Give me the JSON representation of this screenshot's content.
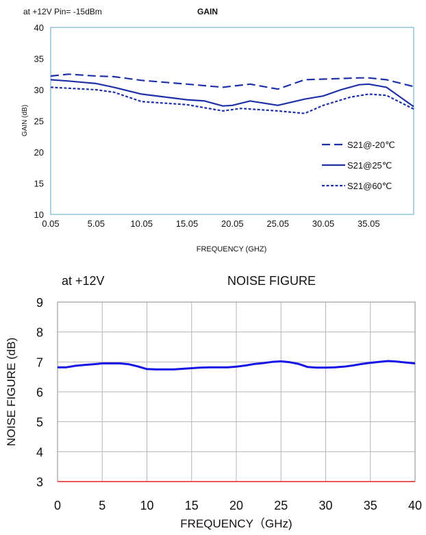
{
  "chart_data": [
    {
      "type": "line",
      "annotation": "at +12V Pin= -15dBm",
      "title": "GAIN",
      "xlabel": "FREQUENCY (GHZ)",
      "ylabel": "GAIN (dB)",
      "xlim": [
        0.05,
        40
      ],
      "ylim": [
        10,
        40
      ],
      "x_tick_labels": [
        "0.05",
        "5.05",
        "10.05",
        "15.05",
        "20.05",
        "25.05",
        "30.05",
        "35.05"
      ],
      "x_ticks": [
        0.05,
        5.05,
        10.05,
        15.05,
        20.05,
        25.05,
        30.05,
        35.05
      ],
      "y_ticks": [
        10,
        15,
        20,
        25,
        30,
        35,
        40
      ],
      "grid": false,
      "legend_position": "bottom-right",
      "series": [
        {
          "name": "S21@-20℃",
          "style": "dashed",
          "color": "#1f2fa8",
          "x": [
            0.05,
            2,
            5.05,
            7,
            10.05,
            15.05,
            19,
            22,
            25.05,
            28,
            30.05,
            34,
            35.05,
            37,
            40
          ],
          "y": [
            32.2,
            32.5,
            32.2,
            32.1,
            31.5,
            30.9,
            30.4,
            30.9,
            30.1,
            31.6,
            31.7,
            31.9,
            31.9,
            31.6,
            30.5
          ]
        },
        {
          "name": "S21@25℃",
          "style": "solid",
          "color": "#1f2fa8",
          "x": [
            0.05,
            2,
            5.05,
            7,
            10.05,
            15.05,
            17,
            19,
            20.05,
            22,
            25.05,
            28,
            30.05,
            32,
            34,
            35.05,
            37,
            40
          ],
          "y": [
            31.6,
            31.4,
            31.0,
            30.4,
            29.3,
            28.4,
            28.2,
            27.4,
            27.5,
            28.2,
            27.5,
            28.5,
            29.0,
            30.0,
            30.8,
            30.9,
            30.4,
            27.3
          ]
        },
        {
          "name": "S21@60℃",
          "style": "dotted",
          "color": "#1f2fa8",
          "x": [
            0.05,
            5.05,
            7,
            10.05,
            15.05,
            19,
            21,
            25.05,
            28,
            30.05,
            33,
            35.05,
            37,
            40
          ],
          "y": [
            30.4,
            30.0,
            29.6,
            28.1,
            27.6,
            26.6,
            27.0,
            26.6,
            26.2,
            27.5,
            28.8,
            29.3,
            29.1,
            26.9
          ]
        }
      ]
    },
    {
      "type": "line",
      "annotation": "at +12V",
      "title": "NOISE FIGURE",
      "xlabel": "FREQUENCY（GHz)",
      "ylabel": "NOISE FIGURE (dB)",
      "xlim": [
        0,
        40
      ],
      "ylim": [
        3,
        9
      ],
      "x_ticks": [
        0,
        5,
        10,
        15,
        20,
        25,
        30,
        35,
        40
      ],
      "y_ticks": [
        3,
        4,
        5,
        6,
        7,
        8,
        9
      ],
      "grid": true,
      "series": [
        {
          "color": "#1414e6",
          "x": [
            0,
            1,
            2,
            3,
            4,
            5,
            6,
            7,
            8,
            9,
            10,
            11,
            12,
            13,
            14,
            15,
            16,
            17,
            18,
            19,
            20,
            21,
            22,
            23,
            24,
            25,
            26,
            27,
            28,
            29,
            30,
            31,
            32,
            33,
            34,
            35,
            36,
            37,
            38,
            39,
            40
          ],
          "y": [
            6.82,
            6.82,
            6.87,
            6.9,
            6.92,
            6.95,
            6.95,
            6.95,
            6.92,
            6.85,
            6.76,
            6.75,
            6.75,
            6.75,
            6.77,
            6.79,
            6.81,
            6.82,
            6.82,
            6.82,
            6.84,
            6.88,
            6.93,
            6.96,
            7.0,
            7.02,
            6.99,
            6.93,
            6.83,
            6.81,
            6.81,
            6.82,
            6.84,
            6.88,
            6.93,
            6.97,
            7.0,
            7.03,
            7.01,
            6.98,
            6.95
          ]
        }
      ]
    }
  ]
}
